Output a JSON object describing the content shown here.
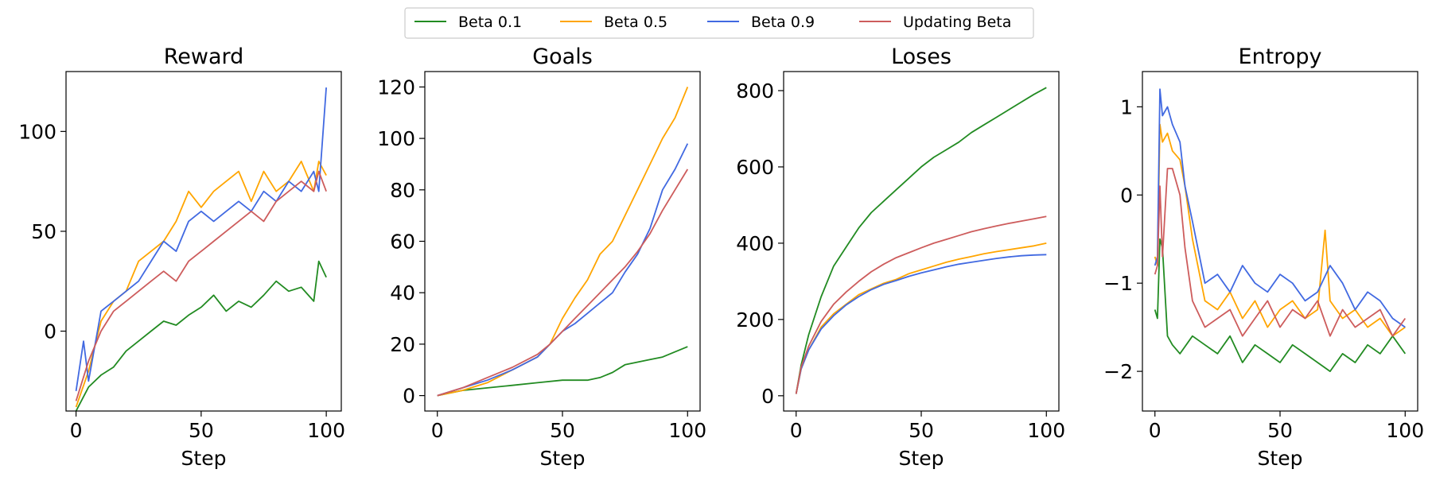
{
  "legend": [
    {
      "name": "Beta 0.1",
      "color": "#228b22"
    },
    {
      "name": "Beta 0.5",
      "color": "#ffa500"
    },
    {
      "name": "Beta 0.9",
      "color": "#4169e1"
    },
    {
      "name": "Updating Beta",
      "color": "#cd5c5c"
    }
  ],
  "chart_data": [
    {
      "type": "line",
      "title": "Reward",
      "xlabel": "Step",
      "ylabel": "",
      "xlim": [
        -4,
        106
      ],
      "ylim": [
        -40,
        130
      ],
      "xticks": [
        0,
        50,
        100
      ],
      "yticks": [
        0,
        50,
        100
      ],
      "ytick_labels": [
        "0",
        "50",
        "100"
      ],
      "series": [
        {
          "name": "Beta 0.1",
          "x": [
            0,
            5,
            10,
            15,
            20,
            25,
            30,
            35,
            40,
            45,
            50,
            55,
            60,
            65,
            70,
            75,
            80,
            85,
            90,
            95,
            97,
            100
          ],
          "y": [
            -40,
            -28,
            -22,
            -18,
            -10,
            -5,
            0,
            5,
            3,
            8,
            12,
            18,
            10,
            15,
            12,
            18,
            25,
            20,
            22,
            15,
            35,
            27
          ]
        },
        {
          "name": "Beta 0.5",
          "x": [
            0,
            5,
            10,
            15,
            20,
            25,
            30,
            35,
            40,
            45,
            50,
            55,
            60,
            65,
            70,
            75,
            80,
            85,
            90,
            95,
            97,
            100
          ],
          "y": [
            -38,
            -20,
            5,
            15,
            20,
            35,
            40,
            45,
            55,
            70,
            62,
            70,
            75,
            80,
            65,
            80,
            70,
            75,
            85,
            70,
            85,
            78
          ]
        },
        {
          "name": "Beta 0.9",
          "x": [
            0,
            3,
            5,
            10,
            15,
            20,
            25,
            30,
            35,
            40,
            45,
            50,
            55,
            60,
            65,
            70,
            75,
            80,
            85,
            90,
            95,
            97,
            100
          ],
          "y": [
            -30,
            -5,
            -25,
            10,
            15,
            20,
            25,
            35,
            45,
            40,
            55,
            60,
            55,
            60,
            65,
            60,
            70,
            65,
            75,
            70,
            80,
            70,
            122
          ]
        },
        {
          "name": "Updating Beta",
          "x": [
            0,
            5,
            10,
            15,
            20,
            25,
            30,
            35,
            40,
            45,
            50,
            55,
            60,
            65,
            70,
            75,
            80,
            85,
            90,
            95,
            97,
            100
          ],
          "y": [
            -35,
            -15,
            0,
            10,
            15,
            20,
            25,
            30,
            25,
            35,
            40,
            45,
            50,
            55,
            60,
            55,
            65,
            70,
            75,
            70,
            80,
            70
          ]
        }
      ]
    },
    {
      "type": "line",
      "title": "Goals",
      "xlabel": "Step",
      "ylabel": "",
      "xlim": [
        -5,
        105
      ],
      "ylim": [
        -6,
        126
      ],
      "xticks": [
        0,
        50,
        100
      ],
      "yticks": [
        0,
        20,
        40,
        60,
        80,
        100,
        120
      ],
      "ytick_labels": [
        "0",
        "20",
        "40",
        "60",
        "80",
        "100",
        "120"
      ],
      "series": [
        {
          "name": "Beta 0.1",
          "x": [
            0,
            10,
            20,
            30,
            40,
            50,
            60,
            65,
            70,
            75,
            80,
            85,
            90,
            95,
            100
          ],
          "y": [
            0,
            2,
            3,
            4,
            5,
            6,
            6,
            7,
            9,
            12,
            13,
            14,
            15,
            17,
            19
          ]
        },
        {
          "name": "Beta 0.5",
          "x": [
            0,
            10,
            20,
            30,
            40,
            45,
            50,
            55,
            60,
            65,
            70,
            75,
            80,
            85,
            90,
            95,
            100
          ],
          "y": [
            0,
            2,
            5,
            10,
            15,
            20,
            30,
            38,
            45,
            55,
            60,
            70,
            80,
            90,
            100,
            108,
            120
          ]
        },
        {
          "name": "Beta 0.9",
          "x": [
            0,
            10,
            20,
            30,
            40,
            45,
            50,
            55,
            60,
            65,
            70,
            75,
            80,
            85,
            90,
            95,
            100
          ],
          "y": [
            0,
            3,
            6,
            10,
            15,
            20,
            25,
            28,
            32,
            36,
            40,
            48,
            55,
            65,
            80,
            88,
            98
          ]
        },
        {
          "name": "Updating Beta",
          "x": [
            0,
            10,
            20,
            30,
            40,
            45,
            50,
            55,
            60,
            65,
            70,
            75,
            80,
            85,
            90,
            95,
            100
          ],
          "y": [
            0,
            3,
            7,
            11,
            16,
            20,
            25,
            30,
            35,
            40,
            45,
            50,
            56,
            63,
            72,
            80,
            88
          ]
        }
      ]
    },
    {
      "type": "line",
      "title": "Loses",
      "xlabel": "Step",
      "ylabel": "",
      "xlim": [
        -5,
        105
      ],
      "ylim": [
        -40,
        850
      ],
      "xticks": [
        0,
        50,
        100
      ],
      "yticks": [
        0,
        200,
        400,
        600,
        800
      ],
      "ytick_labels": [
        "0",
        "200",
        "400",
        "600",
        "800"
      ],
      "series": [
        {
          "name": "Beta 0.1",
          "x": [
            0,
            2,
            5,
            10,
            15,
            20,
            25,
            30,
            35,
            40,
            45,
            50,
            55,
            60,
            65,
            70,
            75,
            80,
            85,
            90,
            95,
            100
          ],
          "y": [
            5,
            80,
            160,
            260,
            340,
            390,
            440,
            480,
            510,
            540,
            570,
            600,
            625,
            645,
            665,
            690,
            710,
            730,
            750,
            770,
            790,
            808
          ]
        },
        {
          "name": "Beta 0.5",
          "x": [
            0,
            2,
            5,
            10,
            15,
            20,
            25,
            30,
            35,
            40,
            45,
            50,
            55,
            60,
            65,
            70,
            75,
            80,
            85,
            90,
            95,
            100
          ],
          "y": [
            5,
            70,
            120,
            180,
            215,
            240,
            265,
            280,
            295,
            305,
            320,
            330,
            340,
            350,
            358,
            365,
            372,
            378,
            383,
            388,
            393,
            400
          ]
        },
        {
          "name": "Beta 0.9",
          "x": [
            0,
            2,
            5,
            10,
            15,
            20,
            25,
            30,
            35,
            40,
            45,
            50,
            55,
            60,
            65,
            70,
            75,
            80,
            85,
            90,
            95,
            100
          ],
          "y": [
            5,
            70,
            120,
            175,
            210,
            238,
            260,
            278,
            292,
            302,
            313,
            322,
            330,
            338,
            345,
            350,
            355,
            360,
            364,
            367,
            369,
            370
          ]
        },
        {
          "name": "Updating Beta",
          "x": [
            0,
            2,
            5,
            10,
            15,
            20,
            25,
            30,
            35,
            40,
            45,
            50,
            55,
            60,
            65,
            70,
            75,
            80,
            85,
            90,
            95,
            100
          ],
          "y": [
            5,
            75,
            130,
            195,
            240,
            272,
            300,
            325,
            345,
            362,
            375,
            388,
            400,
            410,
            420,
            430,
            438,
            445,
            452,
            458,
            464,
            470
          ]
        }
      ]
    },
    {
      "type": "line",
      "title": "Entropy",
      "xlabel": "Step",
      "ylabel": "",
      "xlim": [
        -5,
        105
      ],
      "ylim": [
        -2.45,
        1.4
      ],
      "xticks": [
        0,
        50,
        100
      ],
      "yticks": [
        -2,
        -1,
        0,
        1
      ],
      "ytick_labels": [
        "−2",
        "−1",
        "0",
        "1"
      ],
      "series": [
        {
          "name": "Beta 0.1",
          "x": [
            0,
            1,
            2,
            3,
            5,
            7,
            10,
            15,
            20,
            25,
            30,
            35,
            40,
            45,
            50,
            55,
            60,
            65,
            70,
            75,
            80,
            85,
            90,
            95,
            100
          ],
          "y": [
            -1.3,
            -1.4,
            -0.5,
            -0.6,
            -1.6,
            -1.7,
            -1.8,
            -1.6,
            -1.7,
            -1.8,
            -1.6,
            -1.9,
            -1.7,
            -1.8,
            -1.9,
            -1.7,
            -1.8,
            -1.9,
            -2.0,
            -1.8,
            -1.9,
            -1.7,
            -1.8,
            -1.6,
            -1.8
          ]
        },
        {
          "name": "Beta 0.5",
          "x": [
            0,
            1,
            2,
            3,
            5,
            7,
            10,
            12,
            15,
            20,
            25,
            30,
            35,
            40,
            45,
            50,
            55,
            60,
            65,
            68,
            70,
            75,
            80,
            85,
            90,
            95,
            100
          ],
          "y": [
            -0.7,
            -0.8,
            0.8,
            0.6,
            0.7,
            0.5,
            0.4,
            0.1,
            -0.5,
            -1.2,
            -1.3,
            -1.1,
            -1.4,
            -1.2,
            -1.5,
            -1.3,
            -1.2,
            -1.4,
            -1.3,
            -0.4,
            -1.2,
            -1.4,
            -1.3,
            -1.5,
            -1.4,
            -1.6,
            -1.5
          ]
        },
        {
          "name": "Beta 0.9",
          "x": [
            0,
            1,
            2,
            3,
            5,
            7,
            10,
            12,
            15,
            20,
            25,
            30,
            35,
            40,
            45,
            50,
            55,
            60,
            65,
            70,
            75,
            80,
            85,
            90,
            95,
            100
          ],
          "y": [
            -0.8,
            -0.7,
            1.2,
            0.9,
            1.0,
            0.8,
            0.6,
            0.1,
            -0.3,
            -1.0,
            -0.9,
            -1.1,
            -0.8,
            -1.0,
            -1.1,
            -0.9,
            -1.0,
            -1.2,
            -1.1,
            -0.8,
            -1.0,
            -1.3,
            -1.1,
            -1.2,
            -1.4,
            -1.5
          ]
        },
        {
          "name": "Updating Beta",
          "x": [
            0,
            1,
            2,
            3,
            5,
            7,
            10,
            12,
            15,
            20,
            25,
            30,
            35,
            40,
            45,
            50,
            55,
            60,
            65,
            70,
            75,
            80,
            85,
            90,
            95,
            100
          ],
          "y": [
            -0.9,
            -0.8,
            0.1,
            -0.7,
            0.3,
            0.3,
            0.0,
            -0.6,
            -1.2,
            -1.5,
            -1.4,
            -1.3,
            -1.6,
            -1.4,
            -1.2,
            -1.5,
            -1.3,
            -1.4,
            -1.2,
            -1.6,
            -1.3,
            -1.5,
            -1.4,
            -1.3,
            -1.6,
            -1.4
          ]
        }
      ]
    }
  ]
}
